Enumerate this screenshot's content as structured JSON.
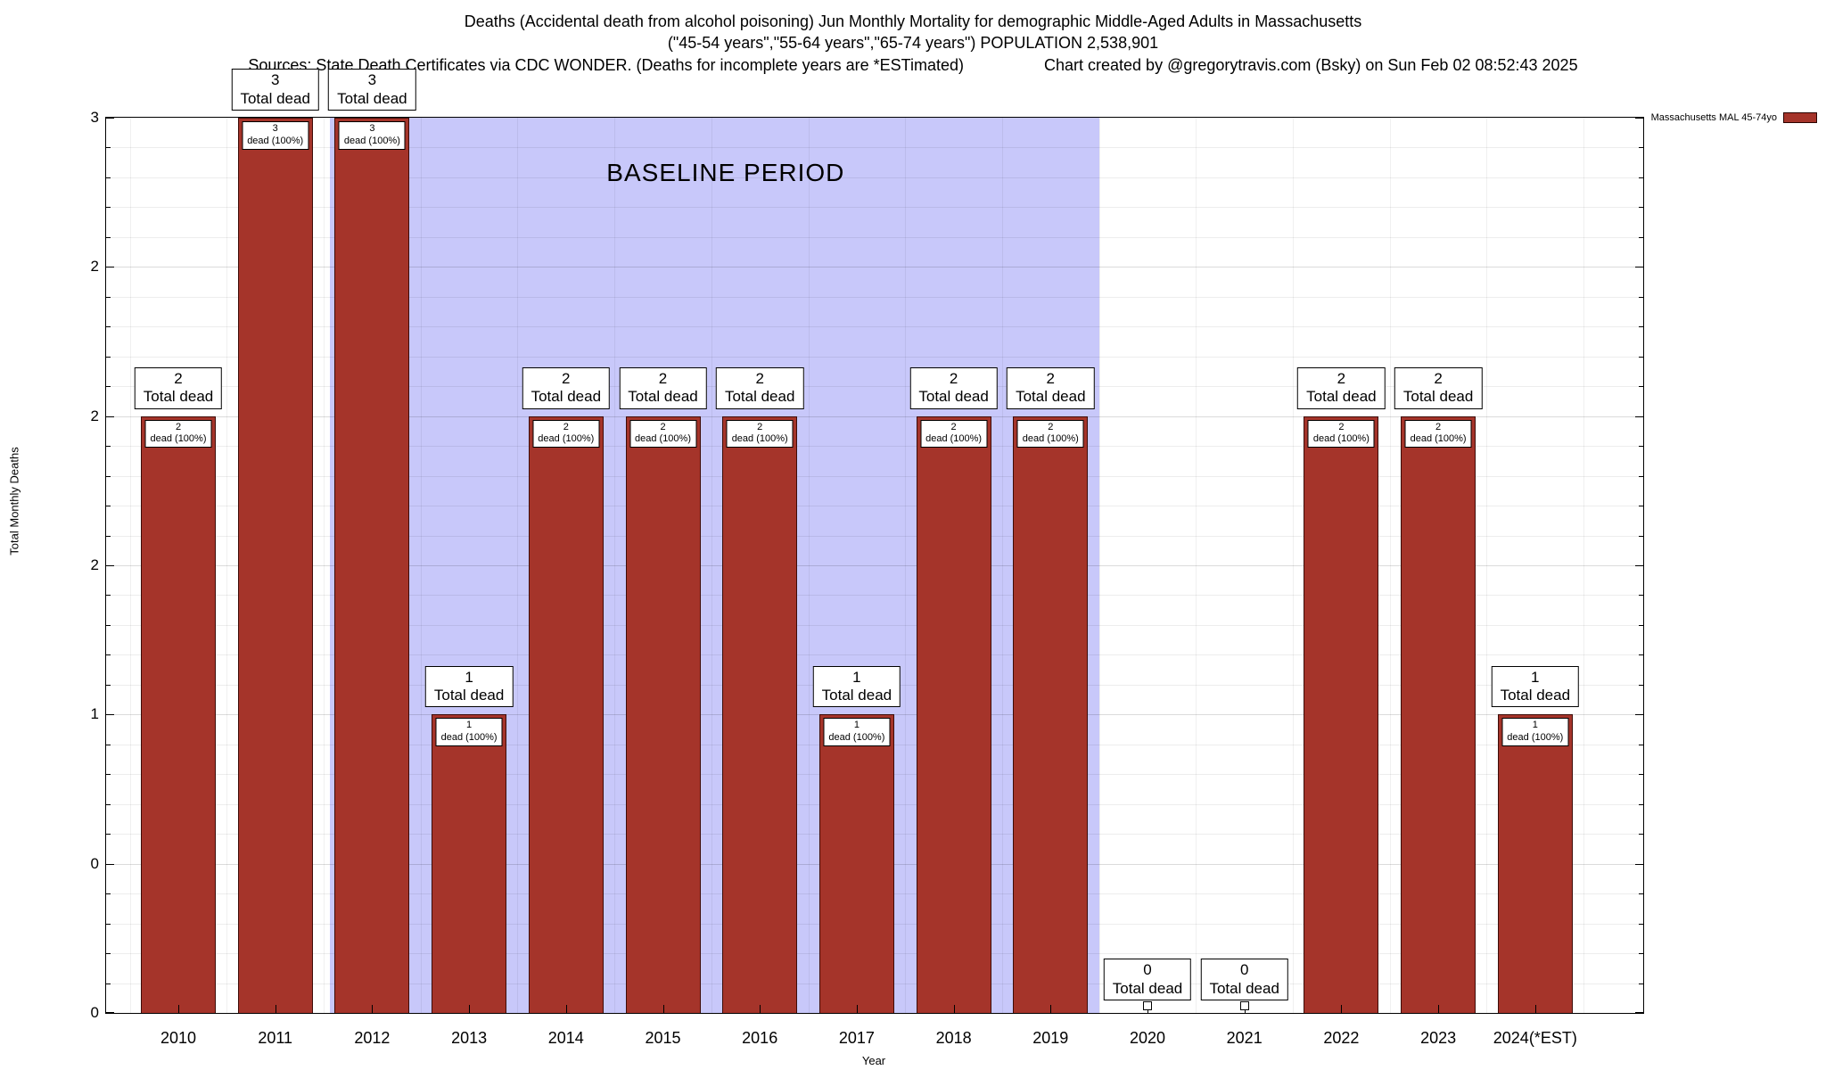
{
  "title": {
    "line1": "Deaths (Accidental death from alcohol poisoning) Jun Monthly Mortality for demographic Middle-Aged Adults in Massachusetts",
    "line2": "(\"45-54 years\",\"55-64 years\",\"65-74 years\") POPULATION 2,538,901",
    "sources": "Sources: State Death Certificates via CDC WONDER. (Deaths for incomplete years are *ESTimated)",
    "credit": "Chart created by @gregorytravis.com (Bsky) on Sun Feb 02 08:52:43 2025"
  },
  "legend": {
    "label": "Massachusetts MAL 45-74yo"
  },
  "axes": {
    "y_label": "Total Monthly Deaths",
    "x_label": "Year",
    "y_ticks": [
      {
        "value": 0,
        "label": "0"
      },
      {
        "value": 0.5,
        "label": "0"
      },
      {
        "value": 1,
        "label": "1"
      },
      {
        "value": 1.5,
        "label": "2"
      },
      {
        "value": 2,
        "label": "2"
      },
      {
        "value": 2.5,
        "label": "2"
      },
      {
        "value": 3,
        "label": "3"
      }
    ]
  },
  "chart_data": {
    "type": "bar",
    "title": "Deaths (Accidental death from alcohol poisoning) Jun Monthly Mortality for demographic Middle-Aged Adults in Massachusetts",
    "categories": [
      "2010",
      "2011",
      "2012",
      "2013",
      "2014",
      "2015",
      "2016",
      "2017",
      "2018",
      "2019",
      "2020",
      "2021",
      "2022",
      "2023",
      "2024(*EST)"
    ],
    "series": [
      {
        "name": "Massachusetts MAL 45-74yo",
        "values": [
          2,
          3,
          3,
          1,
          2,
          2,
          2,
          1,
          2,
          2,
          0,
          0,
          2,
          2,
          1
        ]
      }
    ],
    "xlabel": "Year",
    "ylabel": "Total Monthly Deaths",
    "ylim": [
      0,
      3
    ],
    "y_tick_labels_bottom_to_top": [
      "0",
      "0",
      "1",
      "2",
      "2",
      "2",
      "3"
    ],
    "grid": true,
    "legend_position": "top-right",
    "bar_color": "#a5342a",
    "baseline_region": {
      "label": "BASELINE PERIOD",
      "from_category": "2012",
      "to_category": "2019",
      "color": "#c8c8fa"
    },
    "bar_annotations": {
      "above_label": "Total dead",
      "inside_label": "dead (100%)"
    }
  }
}
